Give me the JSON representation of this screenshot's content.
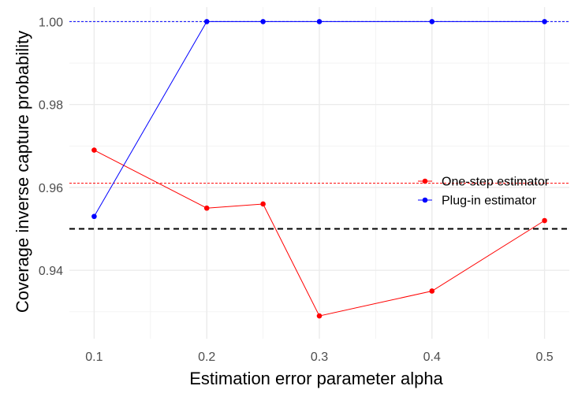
{
  "chart_data": {
    "type": "line",
    "title": "",
    "xlabel": "Estimation error parameter alpha",
    "ylabel": "Coverage inverse capture probability",
    "xlim": [
      0.078,
      0.522
    ],
    "ylim": [
      0.9235,
      1.0035
    ],
    "x_ticks": [
      0.1,
      0.2,
      0.3,
      0.4,
      0.5
    ],
    "x_tick_labels": [
      "0.1",
      "0.2",
      "0.3",
      "0.4",
      "0.5"
    ],
    "y_ticks": [
      0.94,
      0.96,
      0.98,
      1.0
    ],
    "y_tick_labels": [
      "0.94",
      "0.96",
      "0.98",
      "1.00"
    ],
    "grid": true,
    "legend_position": "right",
    "series": [
      {
        "name": "One-step estimator",
        "color": "#ff0000",
        "x": [
          0.1,
          0.2,
          0.25,
          0.3,
          0.4,
          0.5
        ],
        "y": [
          0.969,
          0.955,
          0.956,
          0.929,
          0.935,
          0.952
        ]
      },
      {
        "name": "Plug-in estimator",
        "color": "#0000ff",
        "x": [
          0.1,
          0.2,
          0.25,
          0.3,
          0.4,
          0.5
        ],
        "y": [
          0.953,
          1.0,
          1.0,
          1.0,
          1.0,
          1.0
        ]
      }
    ],
    "reference_lines": [
      {
        "y": 0.95,
        "color": "#000000",
        "style": "dashed"
      },
      {
        "y": 0.961,
        "color": "#ff0000",
        "style": "dotted"
      },
      {
        "y": 1.0,
        "color": "#0000ff",
        "style": "dotted"
      }
    ]
  }
}
